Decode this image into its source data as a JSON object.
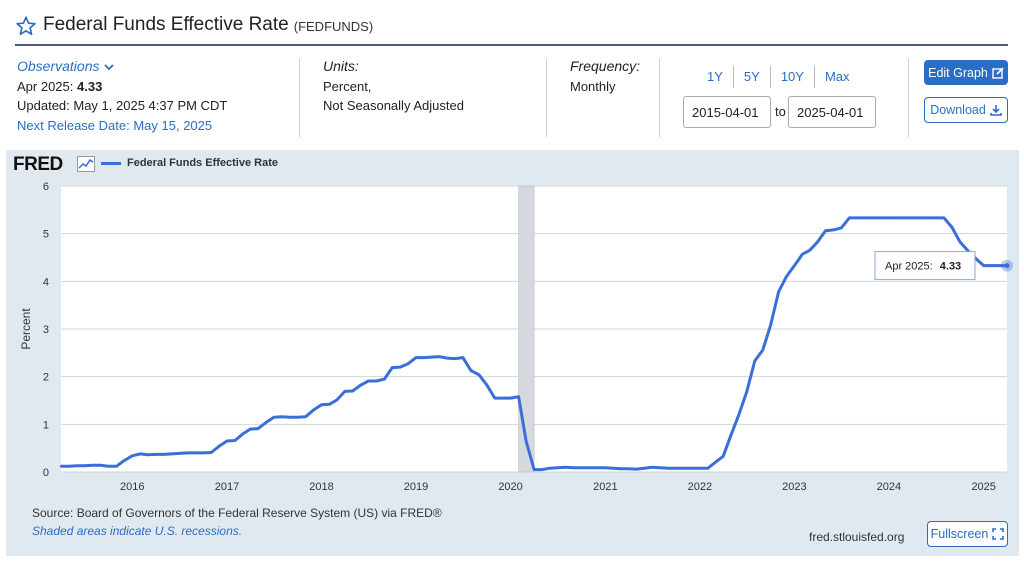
{
  "header": {
    "title": "Federal Funds Effective Rate",
    "series_id": "(FEDFUNDS)"
  },
  "observations": {
    "label": "Observations",
    "latest_period": "Apr 2025:",
    "latest_value": "4.33",
    "updated": "Updated: May 1, 2025 4:37 PM CDT",
    "next_release": "Next Release Date: May 15, 2025"
  },
  "units": {
    "label": "Units:",
    "line1": "Percent,",
    "line2": "Not Seasonally Adjusted"
  },
  "frequency": {
    "label": "Frequency:",
    "value": "Monthly"
  },
  "date_range": {
    "presets": [
      "1Y",
      "5Y",
      "10Y",
      "Max"
    ],
    "start": "2015-04-01",
    "to_label": "to",
    "end": "2025-04-01"
  },
  "buttons": {
    "edit_graph": "Edit Graph",
    "download": "Download",
    "fullscreen": "Fullscreen"
  },
  "graph": {
    "logo": "FRED",
    "source": "Source: Board of Governors of the Federal Reserve System (US) via FRED®",
    "shaded_note": "Shaded areas indicate U.S. recessions.",
    "url": "fred.stlouisfed.org"
  },
  "colors": {
    "line": "#3a6fd8",
    "accent": "#2b6cc4",
    "recession": "#d5d9de"
  },
  "chart_data": {
    "type": "line",
    "title": "",
    "ylabel": "Percent",
    "xlabel": "",
    "ylim": [
      0,
      6
    ],
    "yticks": [
      0,
      1,
      2,
      3,
      4,
      5,
      6
    ],
    "xtick_labels": [
      "2016",
      "2017",
      "2018",
      "2019",
      "2020",
      "2021",
      "2022",
      "2023",
      "2024",
      "2025"
    ],
    "xlim": [
      "2015-04-01",
      "2025-04-01"
    ],
    "grid": true,
    "legend": "top-left",
    "recessions": [
      {
        "start": "2020-02-01",
        "end": "2020-04-01"
      }
    ],
    "tooltip": {
      "label": "Apr 2025:",
      "value": "4.33"
    },
    "series": [
      {
        "name": "Federal Funds Effective Rate",
        "points": [
          [
            "2015-04-01",
            0.12
          ],
          [
            "2015-05-01",
            0.12
          ],
          [
            "2015-06-01",
            0.13
          ],
          [
            "2015-07-01",
            0.13
          ],
          [
            "2015-08-01",
            0.14
          ],
          [
            "2015-09-01",
            0.14
          ],
          [
            "2015-10-01",
            0.12
          ],
          [
            "2015-11-01",
            0.12
          ],
          [
            "2015-12-01",
            0.24
          ],
          [
            "2016-01-01",
            0.34
          ],
          [
            "2016-02-01",
            0.38
          ],
          [
            "2016-03-01",
            0.36
          ],
          [
            "2016-04-01",
            0.37
          ],
          [
            "2016-05-01",
            0.37
          ],
          [
            "2016-06-01",
            0.38
          ],
          [
            "2016-07-01",
            0.39
          ],
          [
            "2016-08-01",
            0.4
          ],
          [
            "2016-09-01",
            0.4
          ],
          [
            "2016-10-01",
            0.4
          ],
          [
            "2016-11-01",
            0.41
          ],
          [
            "2016-12-01",
            0.54
          ],
          [
            "2017-01-01",
            0.65
          ],
          [
            "2017-02-01",
            0.66
          ],
          [
            "2017-03-01",
            0.79
          ],
          [
            "2017-04-01",
            0.9
          ],
          [
            "2017-05-01",
            0.91
          ],
          [
            "2017-06-01",
            1.04
          ],
          [
            "2017-07-01",
            1.15
          ],
          [
            "2017-08-01",
            1.16
          ],
          [
            "2017-09-01",
            1.15
          ],
          [
            "2017-10-01",
            1.15
          ],
          [
            "2017-11-01",
            1.16
          ],
          [
            "2017-12-01",
            1.3
          ],
          [
            "2018-01-01",
            1.41
          ],
          [
            "2018-02-01",
            1.42
          ],
          [
            "2018-03-01",
            1.51
          ],
          [
            "2018-04-01",
            1.69
          ],
          [
            "2018-05-01",
            1.7
          ],
          [
            "2018-06-01",
            1.82
          ],
          [
            "2018-07-01",
            1.91
          ],
          [
            "2018-08-01",
            1.91
          ],
          [
            "2018-09-01",
            1.95
          ],
          [
            "2018-10-01",
            2.19
          ],
          [
            "2018-11-01",
            2.2
          ],
          [
            "2018-12-01",
            2.27
          ],
          [
            "2019-01-01",
            2.4
          ],
          [
            "2019-02-01",
            2.4
          ],
          [
            "2019-03-01",
            2.41
          ],
          [
            "2019-04-01",
            2.42
          ],
          [
            "2019-05-01",
            2.39
          ],
          [
            "2019-06-01",
            2.38
          ],
          [
            "2019-07-01",
            2.4
          ],
          [
            "2019-08-01",
            2.13
          ],
          [
            "2019-09-01",
            2.04
          ],
          [
            "2019-10-01",
            1.83
          ],
          [
            "2019-11-01",
            1.55
          ],
          [
            "2019-12-01",
            1.55
          ],
          [
            "2020-01-01",
            1.55
          ],
          [
            "2020-02-01",
            1.58
          ],
          [
            "2020-03-01",
            0.65
          ],
          [
            "2020-04-01",
            0.05
          ],
          [
            "2020-05-01",
            0.05
          ],
          [
            "2020-06-01",
            0.08
          ],
          [
            "2020-07-01",
            0.09
          ],
          [
            "2020-08-01",
            0.1
          ],
          [
            "2020-09-01",
            0.09
          ],
          [
            "2020-10-01",
            0.09
          ],
          [
            "2020-11-01",
            0.09
          ],
          [
            "2020-12-01",
            0.09
          ],
          [
            "2021-01-01",
            0.09
          ],
          [
            "2021-02-01",
            0.08
          ],
          [
            "2021-03-01",
            0.07
          ],
          [
            "2021-04-01",
            0.07
          ],
          [
            "2021-05-01",
            0.06
          ],
          [
            "2021-06-01",
            0.08
          ],
          [
            "2021-07-01",
            0.1
          ],
          [
            "2021-08-01",
            0.09
          ],
          [
            "2021-09-01",
            0.08
          ],
          [
            "2021-10-01",
            0.08
          ],
          [
            "2021-11-01",
            0.08
          ],
          [
            "2021-12-01",
            0.08
          ],
          [
            "2022-01-01",
            0.08
          ],
          [
            "2022-02-01",
            0.08
          ],
          [
            "2022-03-01",
            0.2
          ],
          [
            "2022-04-01",
            0.33
          ],
          [
            "2022-05-01",
            0.77
          ],
          [
            "2022-06-01",
            1.21
          ],
          [
            "2022-07-01",
            1.68
          ],
          [
            "2022-08-01",
            2.33
          ],
          [
            "2022-09-01",
            2.56
          ],
          [
            "2022-10-01",
            3.08
          ],
          [
            "2022-11-01",
            3.78
          ],
          [
            "2022-12-01",
            4.1
          ],
          [
            "2023-01-01",
            4.33
          ],
          [
            "2023-02-01",
            4.57
          ],
          [
            "2023-03-01",
            4.65
          ],
          [
            "2023-04-01",
            4.83
          ],
          [
            "2023-05-01",
            5.06
          ],
          [
            "2023-06-01",
            5.08
          ],
          [
            "2023-07-01",
            5.12
          ],
          [
            "2023-08-01",
            5.33
          ],
          [
            "2023-09-01",
            5.33
          ],
          [
            "2023-10-01",
            5.33
          ],
          [
            "2023-11-01",
            5.33
          ],
          [
            "2023-12-01",
            5.33
          ],
          [
            "2024-01-01",
            5.33
          ],
          [
            "2024-02-01",
            5.33
          ],
          [
            "2024-03-01",
            5.33
          ],
          [
            "2024-04-01",
            5.33
          ],
          [
            "2024-05-01",
            5.33
          ],
          [
            "2024-06-01",
            5.33
          ],
          [
            "2024-07-01",
            5.33
          ],
          [
            "2024-08-01",
            5.33
          ],
          [
            "2024-09-01",
            5.13
          ],
          [
            "2024-10-01",
            4.83
          ],
          [
            "2024-11-01",
            4.64
          ],
          [
            "2024-12-01",
            4.48
          ],
          [
            "2025-01-01",
            4.33
          ],
          [
            "2025-02-01",
            4.33
          ],
          [
            "2025-03-01",
            4.33
          ],
          [
            "2025-04-01",
            4.33
          ]
        ]
      }
    ]
  }
}
